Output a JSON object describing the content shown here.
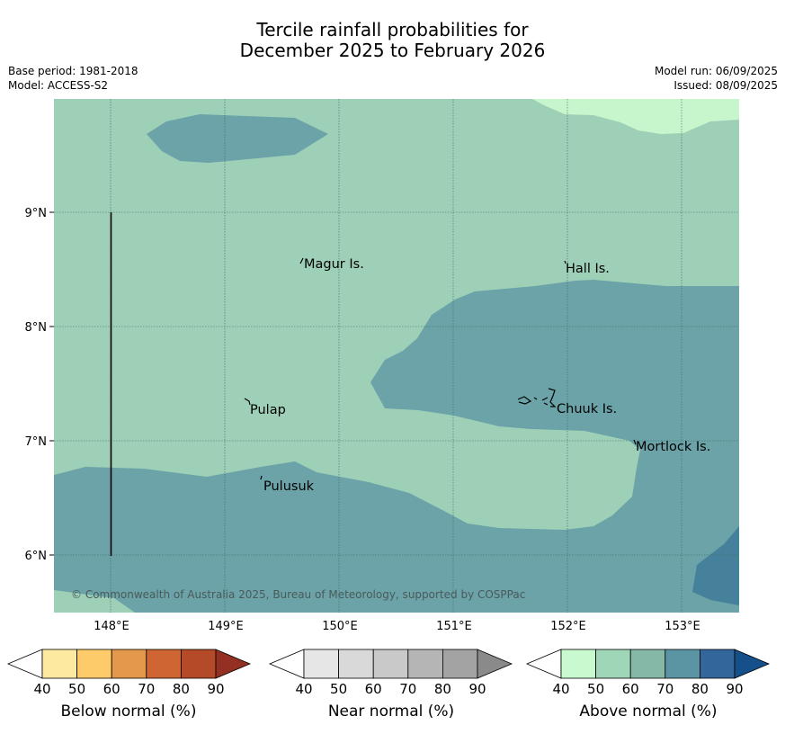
{
  "header": {
    "title_line1": "Tercile rainfall probabilities for",
    "title_line2": "December 2025 to February 2026",
    "base_period": "Base period: 1981-2018",
    "model": "Model: ACCESS-S2",
    "model_run": "Model run: 06/09/2025",
    "issued": "Issued: 08/09/2025"
  },
  "map": {
    "lat_labels": [
      "9°N",
      "8°N",
      "7°N",
      "6°N"
    ],
    "lon_labels": [
      "148°E",
      "149°E",
      "150°E",
      "151°E",
      "152°E",
      "153°E"
    ],
    "places": [
      {
        "name": "Magur Is.",
        "lon": 149.67,
        "lat": 8.55
      },
      {
        "name": "Hall Is.",
        "lon": 151.98,
        "lat": 8.52
      },
      {
        "name": "Pulap",
        "lon": 149.2,
        "lat": 7.3
      },
      {
        "name": "Chuuk Is.",
        "lon": 151.85,
        "lat": 7.35
      },
      {
        "name": "Mortlock Is.",
        "lon": 152.58,
        "lat": 6.95
      },
      {
        "name": "Pulusuk",
        "lon": 149.3,
        "lat": 6.65
      }
    ],
    "copyright": "© Commonwealth of Australia 2025, Bureau of Meteorology, supported by COSPPac",
    "colors": {
      "above_50_60": "#9ed0b8",
      "above_70_80": "#6ba3a8",
      "above_80_90": "#45819b",
      "above_40_50": "#c8f6cc"
    }
  },
  "legend": {
    "ticks": [
      "40",
      "50",
      "60",
      "70",
      "80",
      "90"
    ],
    "below": {
      "label": "Below normal (%)",
      "colors": [
        "#ffffff",
        "#fdeaa0",
        "#fdcb6a",
        "#e3984c",
        "#cf6532",
        "#b54a28",
        "#943023"
      ]
    },
    "near": {
      "label": "Near normal (%)",
      "colors": [
        "#ffffff",
        "#e6e6e6",
        "#d9d9d9",
        "#c9c9c9",
        "#b5b5b5",
        "#a3a3a3",
        "#8a8a8a"
      ]
    },
    "above": {
      "label": "Above normal (%)",
      "colors": [
        "#ffffff",
        "#c9f9cf",
        "#9fd6b8",
        "#86b8a8",
        "#5b94a3",
        "#33679b",
        "#16508a"
      ]
    }
  }
}
